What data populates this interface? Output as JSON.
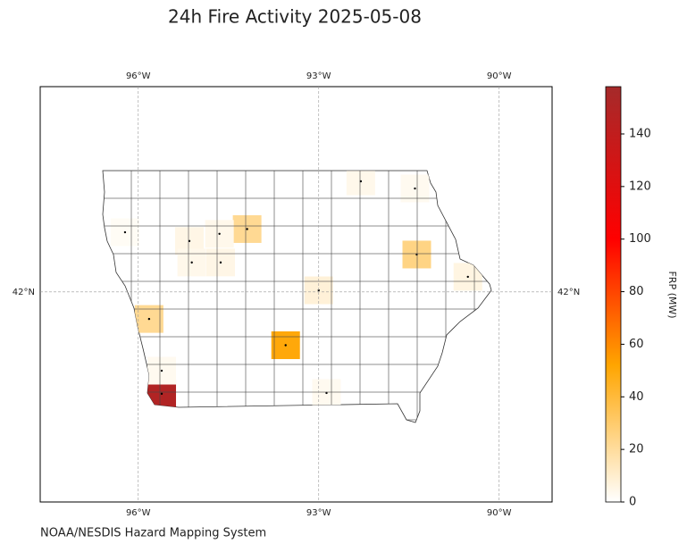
{
  "chart_data": {
    "type": "choropleth",
    "title": "24h Fire Activity 2025-05-08",
    "credit": "NOAA/NESDIS Hazard Mapping System",
    "xlim": [
      -97.63,
      -89.12
    ],
    "ylim": [
      39.36,
      44.58
    ],
    "xticks": [
      {
        "value": -96,
        "label": "96°W"
      },
      {
        "value": -93,
        "label": "93°W"
      },
      {
        "value": -90,
        "label": "90°W"
      }
    ],
    "yticks": [
      {
        "value": 42,
        "label": "42°N"
      }
    ],
    "grid": true,
    "colorbar": {
      "label": "FRP (MW)",
      "lim": [
        0,
        158
      ],
      "ticks": [
        0,
        20,
        40,
        60,
        80,
        100,
        120,
        140
      ],
      "colormap": [
        {
          "value": 0,
          "color": "#ffffff"
        },
        {
          "value": 52,
          "color": "#ffa500"
        },
        {
          "value": 100,
          "color": "#ff0000"
        },
        {
          "value": 158,
          "color": "#a52a2a"
        }
      ]
    },
    "fires": [
      {
        "lon": -95.61,
        "lat": 40.72,
        "frp": 150
      },
      {
        "lon": -93.55,
        "lat": 41.33,
        "frp": 50
      },
      {
        "lon": -95.82,
        "lat": 41.66,
        "frp": 22
      },
      {
        "lon": -94.19,
        "lat": 42.79,
        "frp": 22
      },
      {
        "lon": -91.37,
        "lat": 42.47,
        "frp": 25
      },
      {
        "lon": -93.0,
        "lat": 42.02,
        "frp": 8
      },
      {
        "lon": -90.52,
        "lat": 42.19,
        "frp": 6
      },
      {
        "lon": -95.15,
        "lat": 42.64,
        "frp": 5
      },
      {
        "lon": -94.65,
        "lat": 42.73,
        "frp": 4
      },
      {
        "lon": -95.11,
        "lat": 42.37,
        "frp": 4
      },
      {
        "lon": -94.63,
        "lat": 42.37,
        "frp": 5
      },
      {
        "lon": -92.3,
        "lat": 43.39,
        "frp": 4
      },
      {
        "lon": -91.4,
        "lat": 43.3,
        "frp": 3
      },
      {
        "lon": -96.22,
        "lat": 42.75,
        "frp": 2
      },
      {
        "lon": -95.61,
        "lat": 41.01,
        "frp": 3
      },
      {
        "lon": -92.87,
        "lat": 40.73,
        "frp": 3
      }
    ]
  }
}
